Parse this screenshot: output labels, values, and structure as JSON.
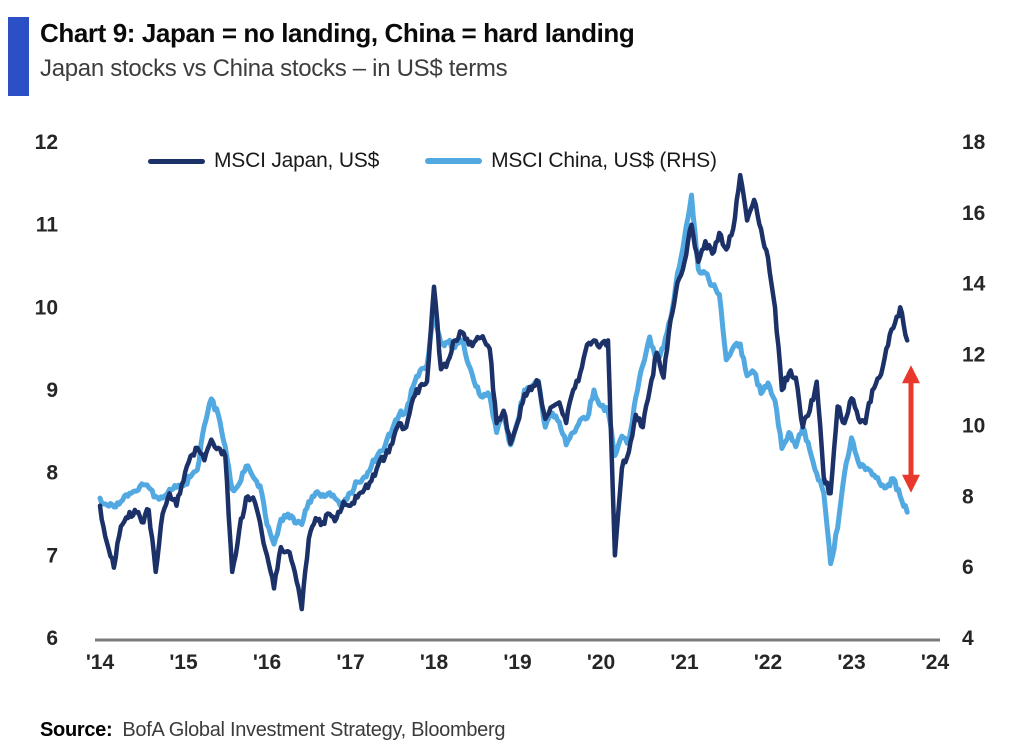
{
  "header": {
    "title": "Chart 9: Japan = no landing, China = hard landing",
    "subtitle": "Japan stocks vs China stocks – in US$ terms",
    "accent_color": "#2B50C6"
  },
  "legend": [
    {
      "label": "MSCI Japan, US$",
      "color": "#1B3168"
    },
    {
      "label": "MSCI China, US$ (RHS)",
      "color": "#52A9E1"
    }
  ],
  "source": {
    "prefix": "Source:",
    "text": "BofA Global Investment Strategy, Bloomberg"
  },
  "chart_data": {
    "type": "line",
    "title": "Chart 9: Japan = no landing, China = hard landing",
    "subtitle": "Japan stocks vs China stocks – in US$ terms",
    "x_tick_labels": [
      "'14",
      "'15",
      "'16",
      "'17",
      "'18",
      "'19",
      "'20",
      "'21",
      "'22",
      "'23",
      "'24"
    ],
    "x_range_years": [
      2014,
      2024
    ],
    "grid": "off",
    "legend_position": "top-inside",
    "left_axis": {
      "ticks": [
        12,
        11,
        10,
        9,
        8,
        7,
        6
      ],
      "range": [
        6,
        12
      ]
    },
    "right_axis": {
      "ticks": [
        18,
        16,
        14,
        12,
        10,
        8,
        6,
        4
      ],
      "range": [
        4,
        18
      ]
    },
    "axis_line_color": "#7B7B7B",
    "series": [
      {
        "name": "MSCI China, US$ (RHS)",
        "axis": "right",
        "color": "#52A9E1",
        "start_month": "2014-01",
        "frequency": "monthly",
        "values": [
          7.95,
          7.75,
          7.7,
          7.85,
          8.0,
          8.15,
          8.35,
          8.25,
          8.0,
          7.95,
          8.2,
          8.25,
          8.3,
          8.55,
          8.75,
          10.0,
          10.75,
          10.3,
          9.4,
          8.2,
          8.35,
          8.85,
          8.55,
          8.3,
          7.2,
          6.65,
          7.35,
          7.5,
          7.25,
          7.2,
          7.85,
          8.1,
          8.05,
          8.1,
          7.9,
          7.75,
          8.1,
          8.4,
          8.55,
          8.85,
          9.2,
          9.45,
          9.9,
          10.3,
          10.4,
          11.1,
          11.55,
          11.7,
          13.2,
          12.3,
          12.35,
          12.2,
          12.4,
          11.7,
          11.1,
          10.8,
          10.85,
          9.8,
          10.3,
          9.45,
          10.1,
          11.0,
          11.1,
          11.25,
          9.95,
          10.35,
          10.1,
          9.45,
          9.8,
          10.15,
          10.2,
          11.0,
          10.55,
          10.4,
          9.15,
          9.7,
          9.55,
          10.8,
          11.7,
          12.5,
          11.85,
          12.2,
          13.0,
          14.3,
          15.3,
          16.5,
          14.4,
          14.3,
          13.95,
          13.7,
          11.85,
          12.2,
          12.3,
          11.4,
          11.5,
          10.9,
          11.2,
          10.7,
          9.35,
          9.8,
          9.4,
          9.95,
          9.3,
          8.65,
          8.1,
          6.1,
          7.1,
          8.65,
          9.65,
          8.95,
          8.75,
          8.6,
          8.4,
          8.25,
          8.5,
          8.0,
          7.55
        ]
      },
      {
        "name": "MSCI Japan, US$",
        "axis": "left",
        "color": "#1B3168",
        "start_month": "2014-01",
        "frequency": "monthly",
        "values": [
          7.6,
          7.15,
          6.85,
          7.35,
          7.45,
          7.55,
          7.4,
          7.55,
          6.8,
          7.5,
          7.75,
          7.6,
          7.9,
          8.2,
          8.3,
          8.15,
          8.4,
          8.3,
          8.2,
          6.8,
          7.3,
          7.7,
          7.7,
          7.4,
          7.0,
          6.6,
          7.1,
          7.05,
          6.8,
          6.35,
          7.2,
          7.45,
          7.4,
          7.5,
          7.45,
          7.65,
          7.6,
          7.7,
          7.8,
          7.9,
          8.1,
          8.2,
          8.35,
          8.6,
          8.55,
          8.9,
          9.05,
          9.1,
          10.25,
          9.25,
          9.35,
          9.6,
          9.7,
          9.55,
          9.6,
          9.65,
          9.5,
          8.6,
          8.75,
          8.35,
          8.6,
          8.95,
          9.0,
          9.1,
          8.65,
          8.8,
          8.85,
          8.6,
          9.0,
          9.2,
          9.55,
          9.6,
          9.55,
          9.6,
          7.0,
          8.05,
          8.25,
          8.7,
          8.55,
          9.0,
          9.45,
          9.15,
          9.85,
          10.3,
          10.55,
          11.0,
          10.55,
          10.8,
          10.65,
          10.9,
          10.7,
          10.95,
          11.6,
          11.05,
          11.3,
          10.95,
          10.6,
          10.0,
          9.0,
          9.2,
          9.15,
          8.55,
          8.75,
          9.1,
          7.95,
          7.75,
          8.8,
          8.6,
          8.9,
          8.65,
          8.6,
          9.0,
          9.15,
          9.5,
          9.75,
          10.0,
          9.6
        ]
      }
    ],
    "annotation": {
      "type": "vertical_double_arrow",
      "color": "#E8392C",
      "top_value_left_axis": 9.3,
      "bottom_value_right_axis": 8.1
    }
  }
}
